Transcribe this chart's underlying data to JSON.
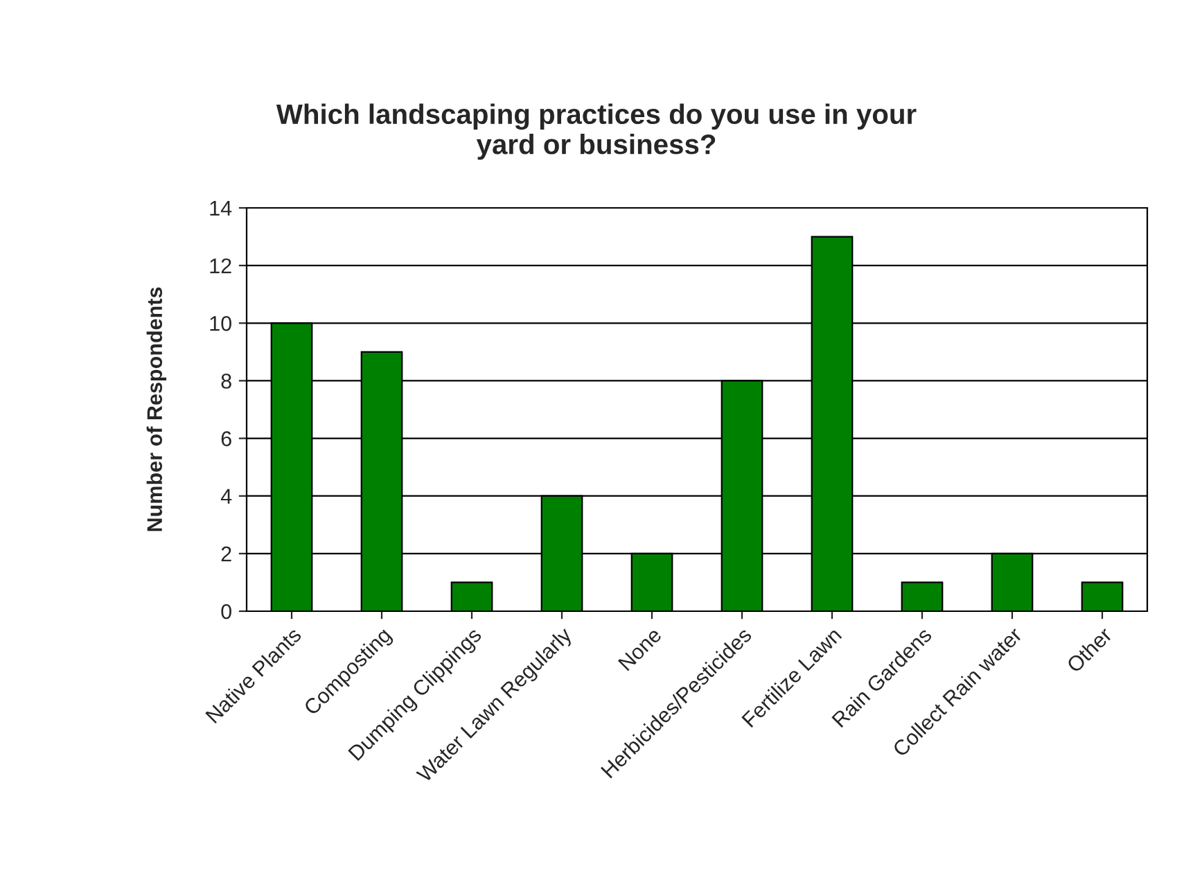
{
  "chart_data": {
    "type": "bar",
    "title": "Which landscaping practices do you use in your\nyard or business?",
    "ylabel": "Number of Respondents",
    "categories": [
      "Native Plants",
      "Composting",
      "Dumping Clippings",
      "Water Lawn Regularly",
      "None",
      "Herbicides/Pesticides",
      "Fertilize Lawn",
      "Rain Gardens",
      "Collect Rain water",
      "Other"
    ],
    "values": [
      10,
      9,
      1,
      4,
      2,
      8,
      13,
      1,
      2,
      1
    ],
    "color": "#008000",
    "ylim": [
      0,
      14
    ],
    "yticks": [
      0,
      2,
      4,
      6,
      8,
      10,
      12,
      14
    ],
    "grid": "y",
    "legend": false
  }
}
